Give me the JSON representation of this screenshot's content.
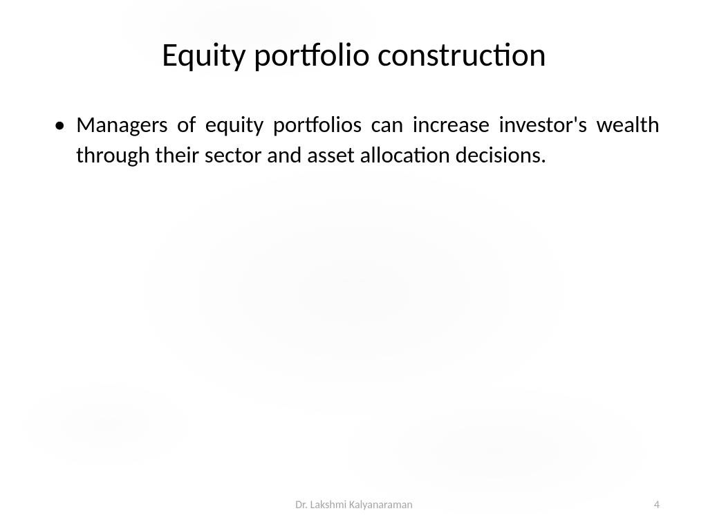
{
  "slide": {
    "title": "Equity portfolio construction",
    "bullets": [
      "Managers of equity portfolios can increase investor's wealth through their sector and asset allocation decisions."
    ],
    "footer": {
      "author": "Dr. Lakshmi Kalyanaraman",
      "page_number": "4"
    },
    "styling": {
      "background_color": "#ffffff",
      "title_color": "#000000",
      "title_fontsize": 48,
      "title_fontweight": 400,
      "body_color": "#000000",
      "body_fontsize": 33,
      "footer_color": "#a6a6a6",
      "footer_fontsize": 16,
      "font_family": "Calibri",
      "text_align_body": "justify"
    }
  }
}
